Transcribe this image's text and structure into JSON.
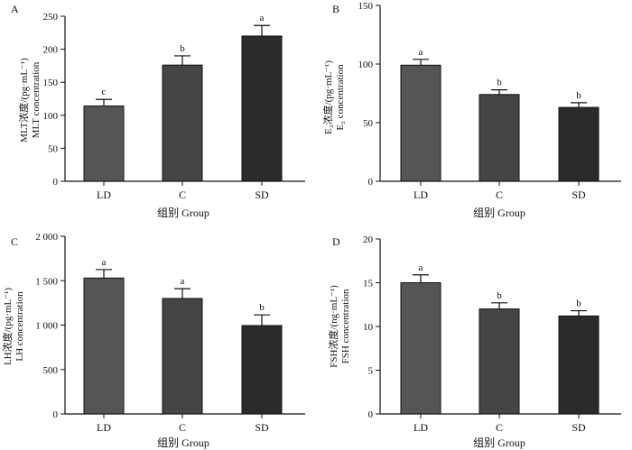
{
  "colors": {
    "ld": "#555555",
    "c": "#454545",
    "sd": "#2b2b2b",
    "axis": "#111111"
  },
  "chart_data": [
    {
      "panel": "A",
      "type": "bar",
      "categories": [
        "LD",
        "C",
        "SD"
      ],
      "values": [
        114,
        176,
        220
      ],
      "errors": [
        10,
        14,
        16
      ],
      "significance": [
        "c",
        "b",
        "a"
      ],
      "ylabel_cn": "MLT浓度/(pg·mL⁻¹)",
      "ylabel_en": "MLT concentration",
      "xlabel": "组别 Group",
      "ylim": [
        0,
        250
      ],
      "yticks": [
        0,
        50,
        100,
        150,
        200,
        250
      ],
      "ytick_labels": [
        "0",
        "50",
        "100",
        "150",
        "200",
        "250"
      ]
    },
    {
      "panel": "B",
      "type": "bar",
      "categories": [
        "LD",
        "C",
        "SD"
      ],
      "values": [
        99,
        74,
        63
      ],
      "errors": [
        5,
        4,
        4
      ],
      "significance": [
        "a",
        "b",
        "b"
      ],
      "ylabel_cn": "E₂浓度/(pg·mL⁻¹)",
      "ylabel_en": "E₂ concentration",
      "xlabel": "组别 Group",
      "ylim": [
        0,
        150
      ],
      "yticks": [
        0,
        50,
        100,
        150
      ],
      "ytick_labels": [
        "0",
        "50",
        "100",
        "150"
      ]
    },
    {
      "panel": "C",
      "type": "bar",
      "categories": [
        "LD",
        "C",
        "SD"
      ],
      "values": [
        1530,
        1300,
        995
      ],
      "errors": [
        95,
        110,
        120
      ],
      "significance": [
        "a",
        "a",
        "b"
      ],
      "ylabel_cn": "LH浓度/(pg·mL⁻¹)",
      "ylabel_en": "LH concentration",
      "xlabel": "组别 Group",
      "ylim": [
        0,
        2000
      ],
      "yticks": [
        0,
        500,
        1000,
        1500,
        2000
      ],
      "ytick_labels": [
        "0",
        "500",
        "1 000",
        "1 500",
        "2 000"
      ]
    },
    {
      "panel": "D",
      "type": "bar",
      "categories": [
        "LD",
        "C",
        "SD"
      ],
      "values": [
        15,
        12,
        11.2
      ],
      "errors": [
        0.9,
        0.7,
        0.6
      ],
      "significance": [
        "a",
        "b",
        "b"
      ],
      "ylabel_cn": "FSH浓度/(ng·mL⁻¹)",
      "ylabel_en": "FSH concentration",
      "xlabel": "组别 Group",
      "ylim": [
        0,
        20
      ],
      "yticks": [
        0,
        5,
        10,
        15,
        20
      ],
      "ytick_labels": [
        "0",
        "5",
        "10",
        "15",
        "20"
      ]
    }
  ]
}
